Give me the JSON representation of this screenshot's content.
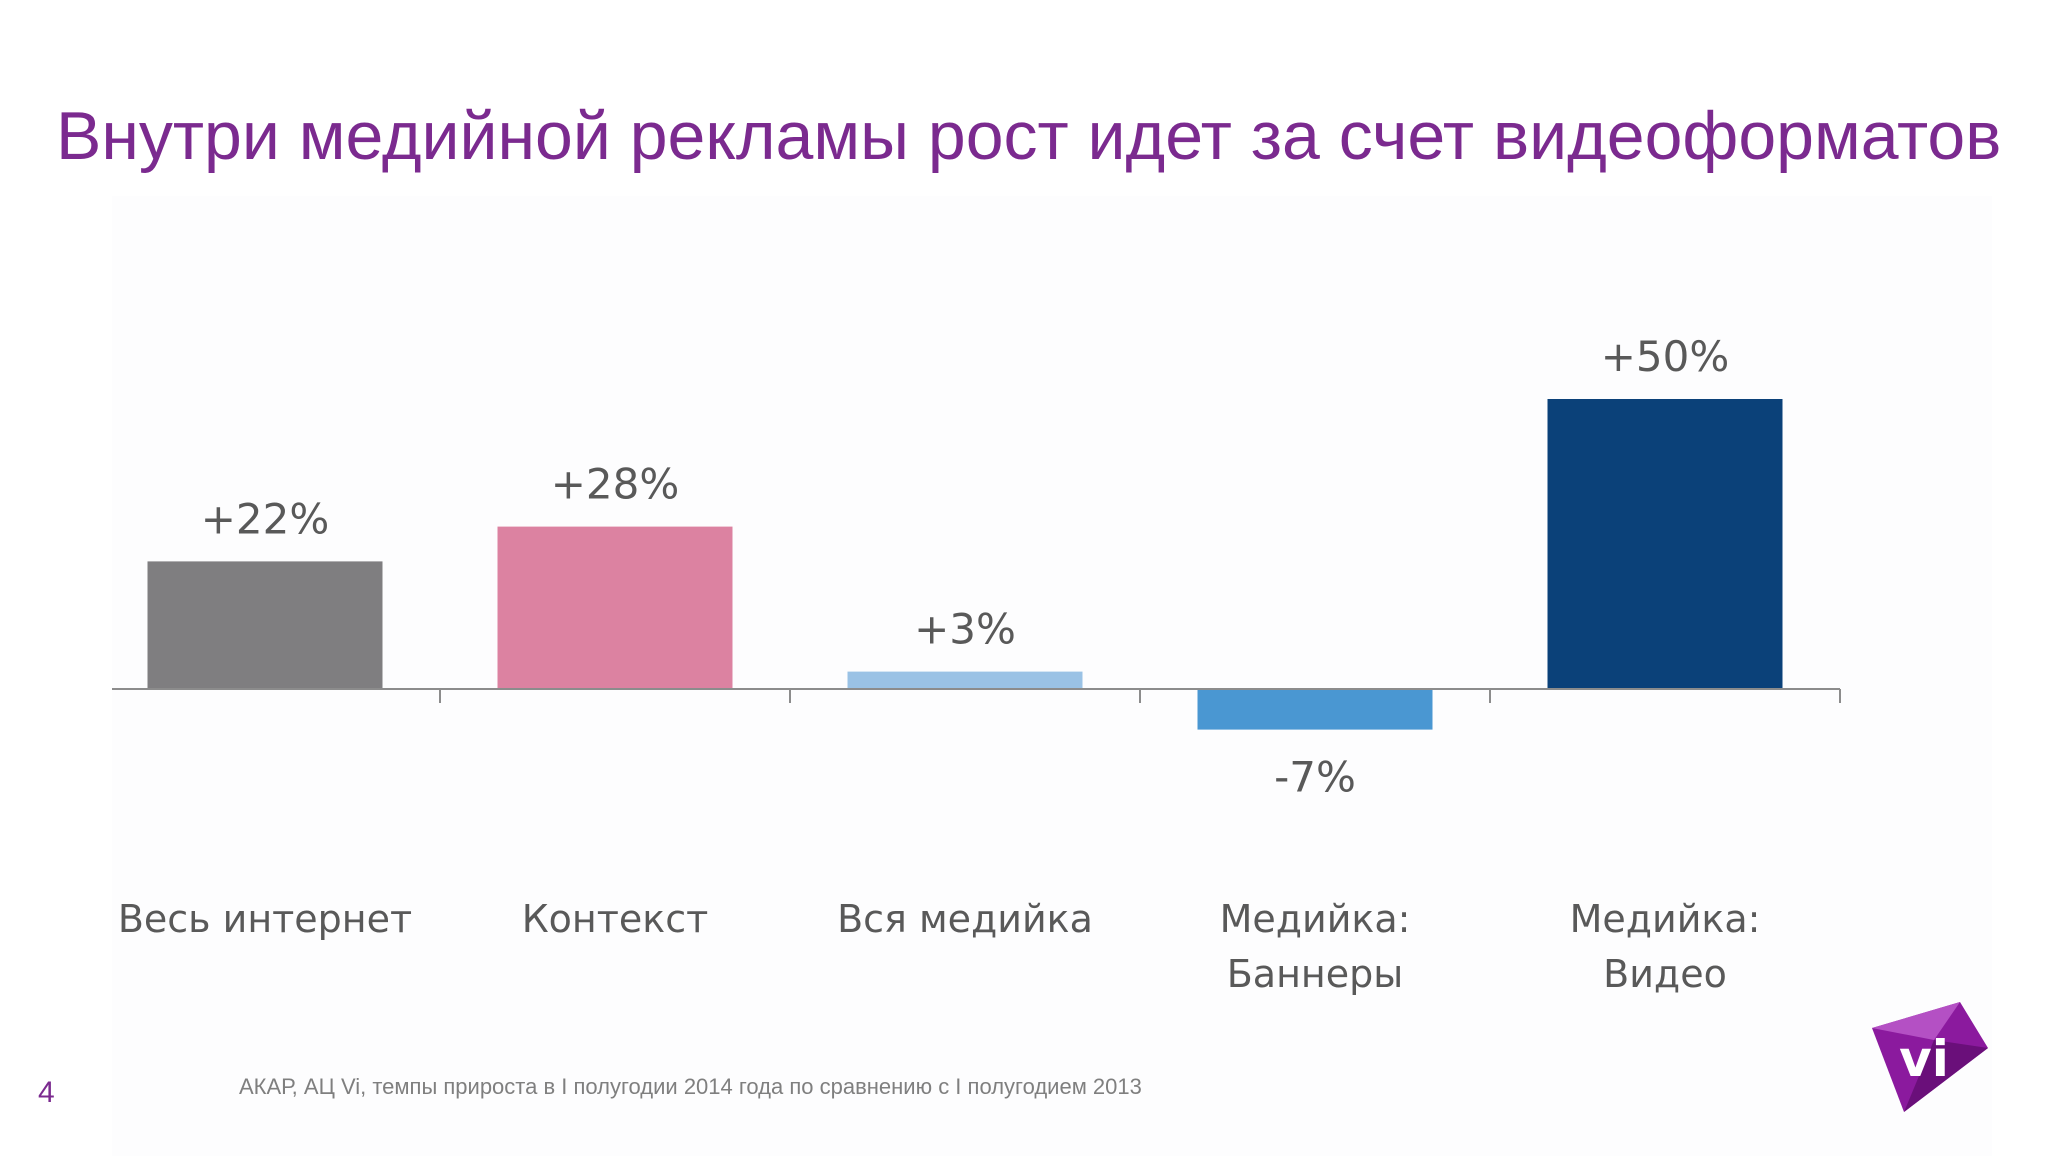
{
  "title": "Внутри медийной рекламы рост идет за счет видеоформатов",
  "page_number": "4",
  "source": "АКАР, АЦ Vi, темпы прироста в I полугодии 2014 года по сравнению с I полугодием 2013",
  "logo": {
    "text": "vi",
    "color": "#8b1a9e",
    "icon": "vi-logo-icon"
  },
  "chart_data": {
    "type": "bar",
    "categories": [
      "Весь интернет",
      "Контекст",
      "Вся медийка",
      "Медийка:\nБаннеры",
      "Медийка:\nВидео"
    ],
    "values": [
      22,
      28,
      3,
      -7,
      50
    ],
    "labels": [
      "+22%",
      "+28%",
      "+3%",
      "-7%",
      "+50%"
    ],
    "colors": [
      "#7f7e80",
      "#dc82a1",
      "#9ac2e5",
      "#4a97d2",
      "#0b4179"
    ],
    "unit": "%",
    "ylim": [
      -7,
      50
    ],
    "grid": false,
    "legend": "none"
  }
}
